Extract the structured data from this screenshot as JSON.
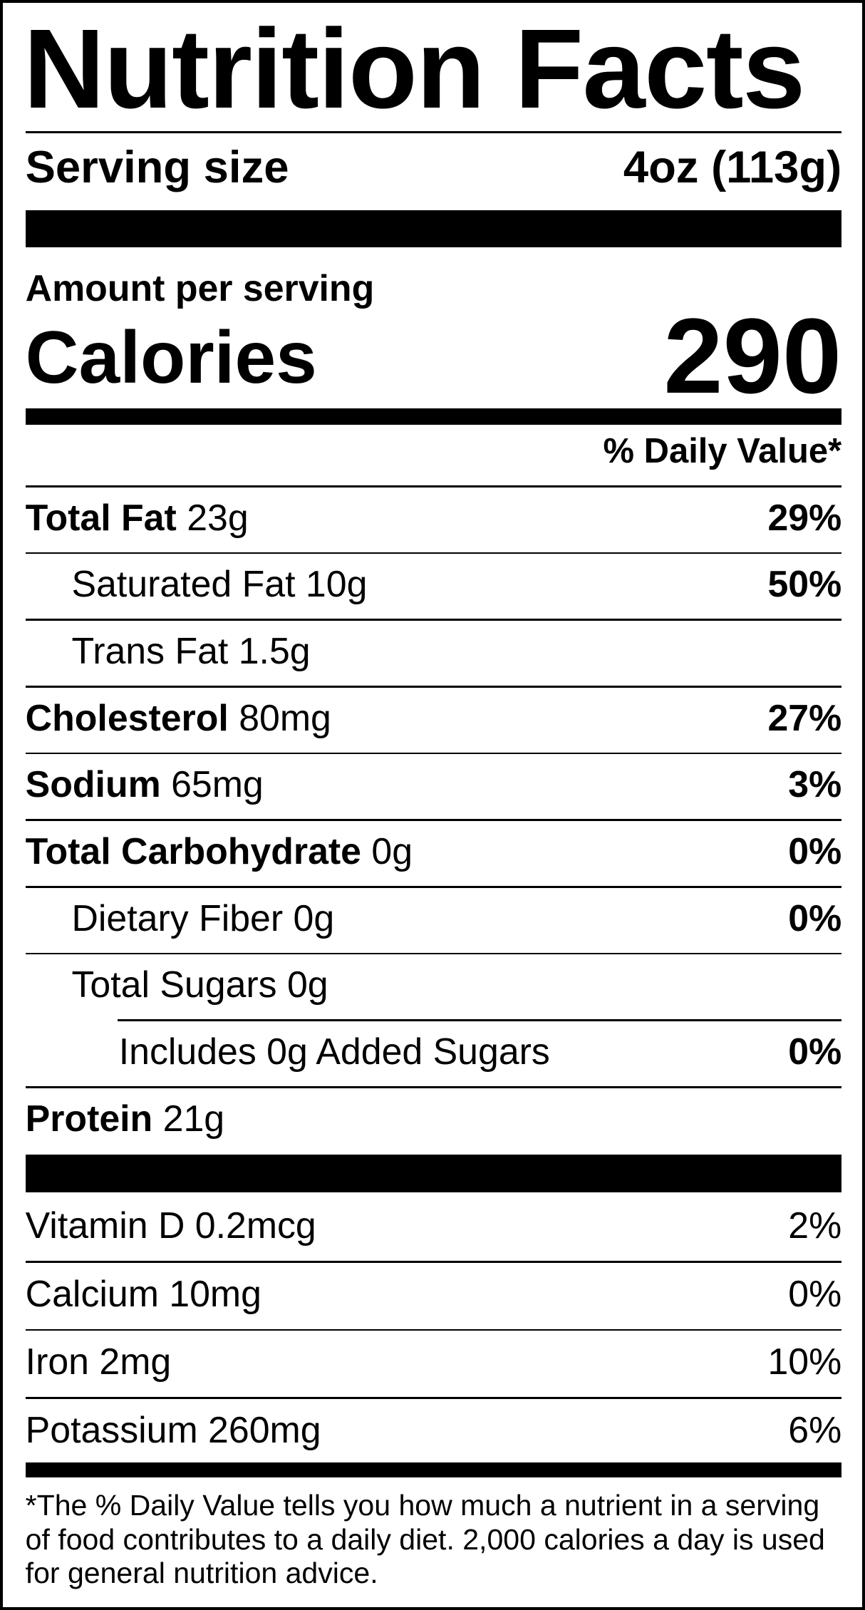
{
  "title": "Nutrition Facts",
  "serving": {
    "label": "Serving size",
    "value": "4oz (113g)"
  },
  "amount_label": "Amount per serving",
  "calories": {
    "label": "Calories",
    "value": 290
  },
  "dv_header": "% Daily Value*",
  "nutrients": [
    {
      "name": "Total Fat",
      "amount": "23g",
      "dv": "29%"
    },
    {
      "name": "Saturated Fat",
      "amount": "10g",
      "dv": "50%"
    },
    {
      "name": "Trans Fat",
      "amount": "1.5g"
    },
    {
      "name": "Cholesterol",
      "amount": "80mg",
      "dv": "27%"
    },
    {
      "name": "Sodium",
      "amount": "65mg",
      "dv": "3%"
    },
    {
      "name": "Total Carbohydrate",
      "amount": "0g",
      "dv": "0%"
    },
    {
      "name": "Dietary Fiber",
      "amount": "0g",
      "dv": "0%"
    },
    {
      "name": "Total Sugars",
      "amount": "0g"
    },
    {
      "name": "Includes 0g Added Sugars",
      "dv": "0%"
    },
    {
      "name": "Protein",
      "amount": "21g"
    }
  ],
  "vitamins": [
    {
      "name": "Vitamin D",
      "amount": "0.2mcg",
      "dv": "2%"
    },
    {
      "name": "Calcium",
      "amount": "10mg",
      "dv": "0%"
    },
    {
      "name": "Iron",
      "amount": "2mg",
      "dv": "10%"
    },
    {
      "name": "Potassium",
      "amount": "260mg",
      "dv": "6%"
    }
  ],
  "footnote": "*The % Daily Value tells you how much a nutrient in a serving of food contributes to a daily diet. 2,000 calories a day is used for general nutrition advice."
}
